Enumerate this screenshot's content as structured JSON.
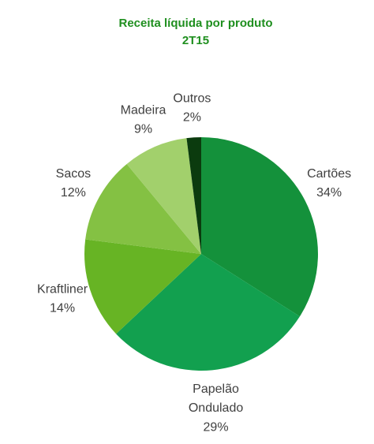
{
  "chart_data": {
    "type": "pie",
    "title": "Receita líquida por produto",
    "subtitle": "2T15",
    "categories": [
      "Cartões",
      "Papelão Ondulado",
      "Kraftliner",
      "Sacos",
      "Madeira",
      "Outros"
    ],
    "values": [
      34,
      29,
      14,
      12,
      9,
      2
    ],
    "value_labels": [
      "34%",
      "29%",
      "14%",
      "12%",
      "9%",
      "2%"
    ],
    "colors": [
      "#14913b",
      "#12a04f",
      "#67b424",
      "#84c143",
      "#a2d06c",
      "#0b3b0e"
    ]
  }
}
